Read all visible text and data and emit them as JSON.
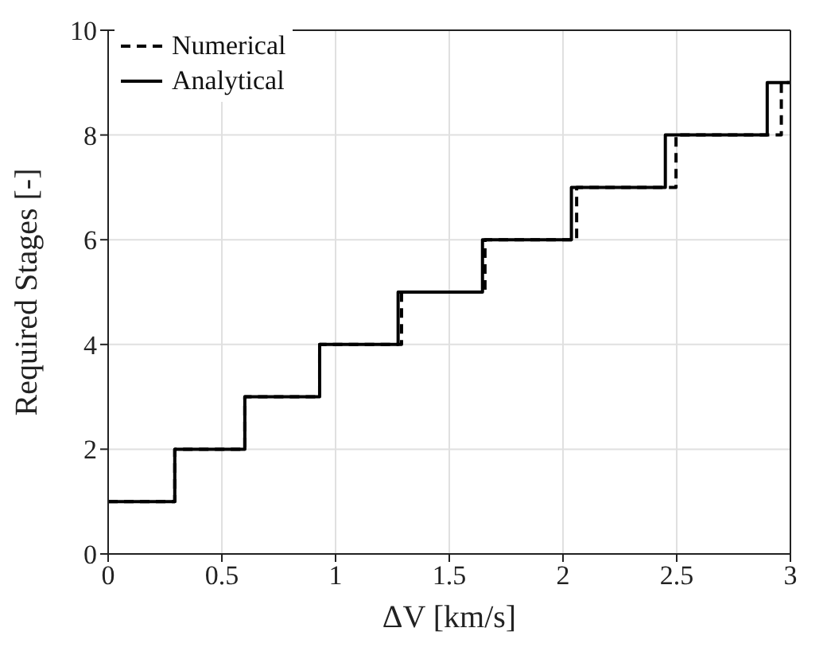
{
  "chart_data": {
    "type": "step",
    "xlabel": "ΔV [km/s]",
    "ylabel": "Required Stages [-]",
    "xlim": [
      0,
      3
    ],
    "xticks": [
      0,
      0.5,
      1,
      1.5,
      2,
      2.5,
      3
    ],
    "ylim": [
      0,
      10
    ],
    "yticks": [
      0,
      2,
      4,
      6,
      8,
      10
    ],
    "grid": true,
    "legend": "top left",
    "marker": "none",
    "series": [
      {
        "name": "Numerical",
        "color": "#000000",
        "line_style": "dashed",
        "x": [
          0,
          0.293,
          0.601,
          0.93,
          1.29,
          1.657,
          2.06,
          2.497,
          2.96,
          3
        ],
        "values": [
          1,
          2,
          3,
          4,
          5,
          6,
          7,
          8,
          9,
          9
        ]
      },
      {
        "name": "Analytical",
        "color": "#000000",
        "line_style": "solid",
        "x": [
          0,
          0.293,
          0.601,
          0.93,
          1.275,
          1.646,
          2.037,
          2.45,
          2.898,
          3
        ],
        "values": [
          1,
          2,
          3,
          4,
          5,
          6,
          7,
          8,
          9,
          9
        ]
      }
    ]
  }
}
